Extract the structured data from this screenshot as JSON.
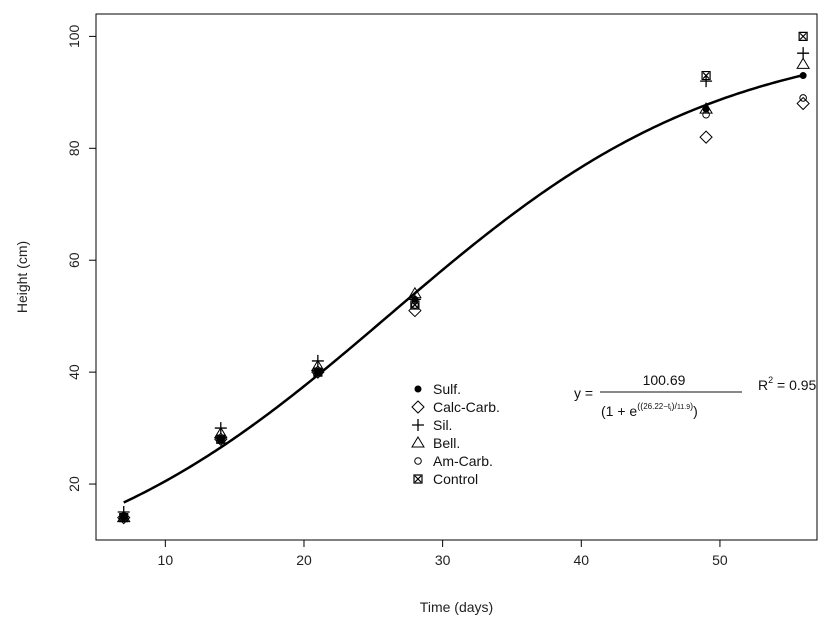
{
  "chart_data": {
    "type": "scatter",
    "xlabel": "Time (days)",
    "ylabel": "Height (cm)",
    "xlim": [
      5,
      57
    ],
    "ylim": [
      10,
      104
    ],
    "xticks": [
      10,
      20,
      30,
      40,
      50
    ],
    "yticks": [
      20,
      40,
      60,
      80,
      100
    ],
    "grid": false,
    "legend_position": "center-right",
    "series": [
      {
        "name": "Sulf.",
        "marker": "filled-circle",
        "x": [
          7,
          14,
          21,
          28,
          49,
          56
        ],
        "y": [
          14,
          28,
          40,
          53,
          87,
          93
        ]
      },
      {
        "name": "Calc-Carb.",
        "marker": "diamond",
        "x": [
          7,
          14,
          21,
          28,
          49,
          56
        ],
        "y": [
          14,
          28,
          40,
          51,
          82,
          88
        ]
      },
      {
        "name": "Sil.",
        "marker": "plus",
        "x": [
          7,
          14,
          21,
          28,
          49,
          56
        ],
        "y": [
          15,
          30,
          42,
          53,
          92,
          97
        ]
      },
      {
        "name": "Bell.",
        "marker": "triangle",
        "x": [
          7,
          14,
          21,
          28,
          49,
          56
        ],
        "y": [
          14,
          29,
          41,
          54,
          87,
          95
        ]
      },
      {
        "name": "Am-Carb.",
        "marker": "open-circle",
        "x": [
          7,
          14,
          21,
          28,
          49,
          56
        ],
        "y": [
          14,
          28,
          40,
          52,
          86,
          89
        ]
      },
      {
        "name": "Control",
        "marker": "boxed-x",
        "x": [
          7,
          14,
          21,
          28,
          49,
          56
        ],
        "y": [
          14,
          28,
          40,
          52,
          93,
          100
        ]
      }
    ],
    "fit": {
      "A": 100.69,
      "B": 26.22,
      "C": 11.9,
      "x_range": [
        7,
        56
      ],
      "color": "#000000"
    },
    "annotation": {
      "lhs": "y =",
      "numerator": "100.69",
      "denominator_prefix": "(1 + e",
      "exp_open": "((",
      "exp_b": "26.22",
      "exp_mid": "−t",
      "exp_sub": "i",
      "exp_close": ")",
      "exp_slash": "/",
      "exp_c": "11.9",
      "exp_end": ")",
      "denominator_suffix": ")",
      "r2_label": "R",
      "r2_exp": "2",
      "r2_value": " = 0.95"
    }
  }
}
